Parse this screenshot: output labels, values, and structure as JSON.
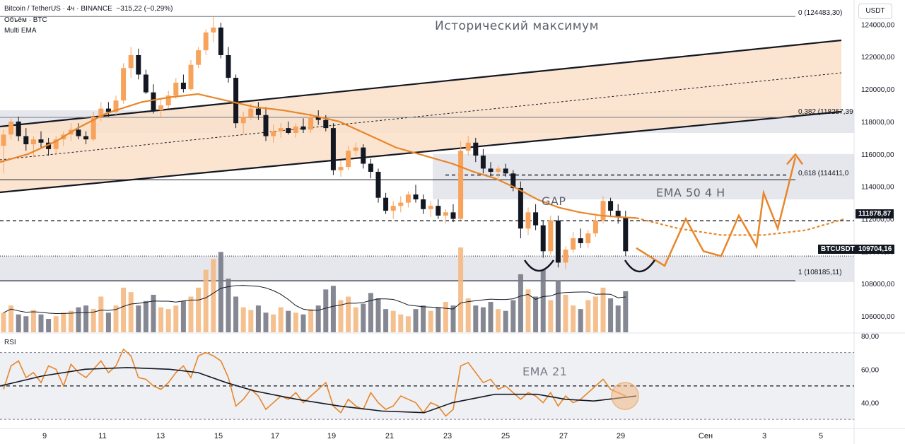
{
  "header": {
    "symbol_line": "Bitcoin / TetherUS · 4ч · BINANCE",
    "change": "−315,22 (−0,29%)",
    "volume_label": "Объём · BTC",
    "indicator_label": "Multi EMA"
  },
  "currency_button": "USDT",
  "rsi_label": "RSI",
  "annotations": {
    "ath": "Исторический максимум",
    "gap": "GAP",
    "ema50": "EMA 50 4 H",
    "ema21": "EMA 21"
  },
  "fib_labels": [
    {
      "text": "0 (124483,30)",
      "price": 124483.3
    },
    {
      "text": "0,382 (118257,39",
      "price": 118257.39
    },
    {
      "text": "0,618 (114411,0",
      "price": 114411
    },
    {
      "text": "1 (108185,11)",
      "price": 108185.11
    }
  ],
  "price_tags": {
    "level": "111878,87",
    "current_symbol": "BTCUSDT",
    "current": "109704,16"
  },
  "colors": {
    "up": "#f7a35c",
    "down": "#131722",
    "ema": "#e8862a",
    "channel_fill": "#fbe1c8",
    "zone": "#d1d4dc",
    "rsi": "#e8862a"
  },
  "chart_data": {
    "type": "candlestick",
    "x_ticks": [
      "9",
      "11",
      "13",
      "15",
      "17",
      "19",
      "21",
      "23",
      "25",
      "27",
      "29",
      "Сен",
      "3",
      "5"
    ],
    "price_axis_ticks": [
      "124000,00",
      "122000,00",
      "120000,00",
      "118000,00",
      "116000,00",
      "114000,00",
      "112000,00",
      "110000,00",
      "108000,00",
      "106000,00"
    ],
    "rsi_axis_ticks": [
      "80,00",
      "60,00",
      "40,00"
    ],
    "price_range": [
      105000,
      125500
    ],
    "rsi_range": [
      25,
      80
    ],
    "horizontal_levels": [
      111878.87,
      114700,
      118500,
      114411
    ],
    "candles": [
      [
        116500,
        117500,
        114800,
        117200
      ],
      [
        117200,
        118200,
        116900,
        118000
      ],
      [
        118000,
        118300,
        116800,
        117100
      ],
      [
        117100,
        117600,
        116200,
        116600
      ],
      [
        116600,
        117100,
        115800,
        116900
      ],
      [
        116900,
        117400,
        116400,
        116700
      ],
      [
        116700,
        117000,
        115900,
        116300
      ],
      [
        116300,
        117100,
        116000,
        116900
      ],
      [
        116900,
        117400,
        116500,
        117200
      ],
      [
        117200,
        117900,
        116800,
        117500
      ],
      [
        117500,
        117900,
        116900,
        117100
      ],
      [
        117100,
        117400,
        116600,
        116900
      ],
      [
        116900,
        118600,
        116800,
        118300
      ],
      [
        118300,
        119200,
        118000,
        118800
      ],
      [
        118800,
        119200,
        118300,
        118600
      ],
      [
        118600,
        119600,
        118400,
        119300
      ],
      [
        119300,
        121600,
        119100,
        121300
      ],
      [
        121300,
        122600,
        120700,
        122100
      ],
      [
        122100,
        122500,
        120600,
        120900
      ],
      [
        120900,
        121200,
        119700,
        119800
      ],
      [
        119800,
        120300,
        118500,
        118700
      ],
      [
        118700,
        119400,
        118300,
        119000
      ],
      [
        119000,
        119900,
        118800,
        119600
      ],
      [
        119600,
        120700,
        119400,
        120400
      ],
      [
        120400,
        120900,
        119800,
        120000
      ],
      [
        120000,
        121800,
        119900,
        121500
      ],
      [
        121500,
        122600,
        121300,
        122400
      ],
      [
        122400,
        123700,
        122100,
        123500
      ],
      [
        123500,
        124483,
        122900,
        123800
      ],
      [
        123800,
        124100,
        121900,
        122100
      ],
      [
        122100,
        122600,
        120400,
        120700
      ],
      [
        120700,
        120900,
        117600,
        117900
      ],
      [
        117900,
        118600,
        117200,
        118300
      ],
      [
        118300,
        119100,
        118100,
        118800
      ],
      [
        118800,
        119200,
        118100,
        118400
      ],
      [
        118400,
        118900,
        116800,
        117100
      ],
      [
        117100,
        117800,
        116700,
        117400
      ],
      [
        117400,
        117900,
        117000,
        117600
      ],
      [
        117600,
        118000,
        117200,
        117300
      ],
      [
        117300,
        117900,
        117000,
        117700
      ],
      [
        117700,
        118200,
        117300,
        117500
      ],
      [
        117500,
        118500,
        117300,
        118300
      ],
      [
        118300,
        118700,
        117800,
        118100
      ],
      [
        118100,
        118400,
        117400,
        117600
      ],
      [
        117600,
        117900,
        114700,
        115000
      ],
      [
        115000,
        115600,
        114600,
        115200
      ],
      [
        115200,
        116500,
        115000,
        116200
      ],
      [
        116200,
        116700,
        115900,
        116400
      ],
      [
        116400,
        116600,
        115100,
        115400
      ],
      [
        115400,
        115700,
        114500,
        114900
      ],
      [
        114900,
        115100,
        113000,
        113300
      ],
      [
        113300,
        113600,
        112300,
        112500
      ],
      [
        112500,
        113100,
        112000,
        112800
      ],
      [
        112800,
        113400,
        112400,
        113000
      ],
      [
        113000,
        113700,
        112700,
        113500
      ],
      [
        113500,
        114100,
        113000,
        113200
      ],
      [
        113200,
        113500,
        112300,
        112600
      ],
      [
        112600,
        113100,
        112100,
        112800
      ],
      [
        112800,
        113200,
        112000,
        112200
      ],
      [
        112200,
        112600,
        111700,
        112400
      ],
      [
        112400,
        112900,
        111800,
        112000
      ],
      [
        112000,
        116800,
        111900,
        116200
      ],
      [
        116200,
        117100,
        115900,
        116700
      ],
      [
        116700,
        117000,
        115500,
        115900
      ],
      [
        115900,
        116300,
        114800,
        115100
      ],
      [
        115100,
        115500,
        114600,
        114900
      ],
      [
        114900,
        115300,
        114500,
        115100
      ],
      [
        115100,
        115400,
        114600,
        114800
      ],
      [
        114800,
        115000,
        113700,
        113900
      ],
      [
        113900,
        114300,
        110800,
        111400
      ],
      [
        111400,
        112700,
        111000,
        112400
      ],
      [
        112400,
        112900,
        111300,
        111600
      ],
      [
        111600,
        111900,
        109600,
        110000
      ],
      [
        110000,
        112200,
        109800,
        111900
      ],
      [
        111900,
        112200,
        109000,
        109300
      ],
      [
        109300,
        110300,
        108900,
        110100
      ],
      [
        110100,
        111200,
        109900,
        110800
      ],
      [
        110800,
        111400,
        110200,
        110500
      ],
      [
        110500,
        111300,
        110200,
        111100
      ],
      [
        111100,
        112200,
        110900,
        111900
      ],
      [
        111900,
        113400,
        111700,
        113100
      ],
      [
        113100,
        113300,
        112100,
        112500
      ],
      [
        112500,
        112900,
        111700,
        112100
      ],
      [
        112100,
        112500,
        109700,
        110000
      ]
    ],
    "volume": [
      22,
      30,
      20,
      18,
      25,
      20,
      15,
      18,
      22,
      24,
      28,
      30,
      26,
      40,
      22,
      30,
      50,
      45,
      30,
      35,
      42,
      28,
      26,
      30,
      35,
      40,
      50,
      70,
      82,
      90,
      60,
      40,
      28,
      25,
      30,
      22,
      20,
      28,
      24,
      22,
      20,
      26,
      30,
      48,
      52,
      36,
      40,
      28,
      32,
      44,
      38,
      26,
      24,
      20,
      18,
      26,
      30,
      24,
      28,
      34,
      30,
      95,
      38,
      30,
      28,
      34,
      26,
      24,
      36,
      65,
      48,
      40,
      70,
      36,
      58,
      42,
      30,
      26,
      36,
      40,
      50,
      38,
      30,
      46
    ],
    "ema_curve": [
      [
        0,
        115500
      ],
      [
        40,
        116000
      ],
      [
        80,
        116800
      ],
      [
        110,
        117600
      ],
      [
        150,
        118500
      ],
      [
        200,
        119200
      ],
      [
        240,
        119500
      ],
      [
        280,
        119700
      ],
      [
        320,
        119300
      ],
      [
        360,
        118900
      ],
      [
        400,
        118700
      ],
      [
        440,
        118400
      ],
      [
        480,
        118000
      ],
      [
        520,
        117200
      ],
      [
        560,
        116400
      ],
      [
        600,
        115900
      ],
      [
        640,
        115400
      ],
      [
        670,
        114900
      ],
      [
        700,
        114500
      ],
      [
        730,
        113900
      ],
      [
        760,
        113200
      ],
      [
        790,
        112700
      ],
      [
        820,
        112400
      ],
      [
        850,
        112200
      ],
      [
        880,
        112100
      ],
      [
        900,
        112050
      ]
    ],
    "ema_projection": [
      [
        900,
        112050
      ],
      [
        960,
        111400
      ],
      [
        1020,
        111000
      ],
      [
        1080,
        111000
      ],
      [
        1140,
        111300
      ],
      [
        1195,
        112000
      ]
    ],
    "price_projection": [
      [
        900,
        110200
      ],
      [
        940,
        109100
      ],
      [
        970,
        112000
      ],
      [
        995,
        110000
      ],
      [
        1020,
        109700
      ],
      [
        1045,
        112200
      ],
      [
        1070,
        110300
      ],
      [
        1080,
        113600
      ],
      [
        1100,
        111400
      ],
      [
        1125,
        115800
      ]
    ],
    "rsi": [
      48,
      62,
      65,
      55,
      58,
      52,
      62,
      60,
      50,
      63,
      58,
      55,
      60,
      65,
      58,
      62,
      72,
      68,
      55,
      54,
      50,
      48,
      52,
      58,
      62,
      55,
      68,
      70,
      68,
      65,
      55,
      38,
      42,
      48,
      44,
      36,
      40,
      44,
      42,
      46,
      40,
      44,
      48,
      52,
      38,
      34,
      42,
      38,
      36,
      46,
      40,
      36,
      38,
      44,
      42,
      40,
      34,
      40,
      38,
      32,
      36,
      62,
      64,
      58,
      52,
      54,
      48,
      50,
      46,
      42,
      46,
      44,
      40,
      46,
      38,
      44,
      40,
      42,
      46,
      50,
      54,
      48,
      46,
      44
    ],
    "rsi_ema": [
      [
        0,
        50
      ],
      [
        60,
        56
      ],
      [
        120,
        60
      ],
      [
        180,
        61
      ],
      [
        240,
        60
      ],
      [
        280,
        58
      ],
      [
        320,
        52
      ],
      [
        360,
        47
      ],
      [
        420,
        42
      ],
      [
        480,
        38
      ],
      [
        540,
        35
      ],
      [
        600,
        34
      ],
      [
        640,
        40
      ],
      [
        700,
        45
      ],
      [
        760,
        45
      ],
      [
        800,
        42
      ],
      [
        840,
        41
      ],
      [
        880,
        43
      ],
      [
        900,
        44
      ]
    ]
  }
}
